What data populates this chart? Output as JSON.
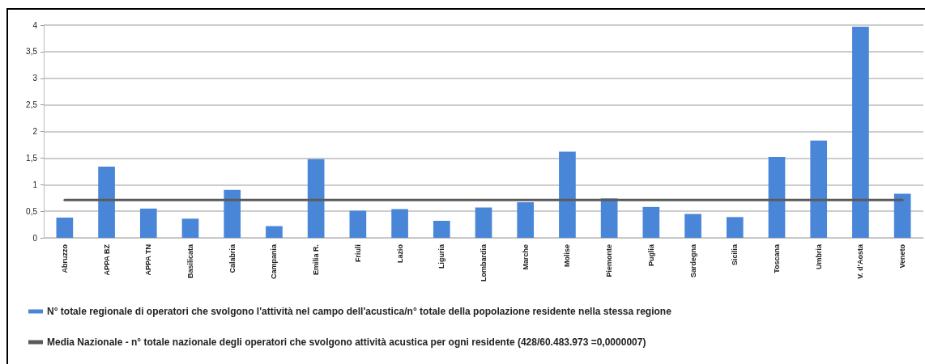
{
  "chart_data": {
    "type": "bar",
    "categories": [
      "Abruzzo",
      "APPA BZ",
      "APPA TN",
      "Basilicata",
      "Calabria",
      "Campania",
      "Emilia R.",
      "Friuli",
      "Lazio",
      "Liguria",
      "Lombardia",
      "Marche",
      "Molise",
      "Piemonte",
      "Puglia",
      "Sardegna",
      "Sicilia",
      "Toscana",
      "Umbria",
      "V. d'Aosta",
      "Veneto"
    ],
    "series": [
      {
        "name": "N° totale regionale di operatori che svolgono l'attività nel campo dell'acustica/n° totale della popolazione residente nella stessa regione",
        "color": "#4a86d8",
        "values": [
          0.38,
          1.34,
          0.55,
          0.36,
          0.9,
          0.22,
          1.48,
          0.51,
          0.54,
          0.32,
          0.57,
          0.67,
          1.62,
          0.74,
          0.58,
          0.45,
          0.39,
          1.52,
          1.83,
          3.97,
          0.83
        ]
      },
      {
        "name": "Media Nazionale - n° totale nazionale degli operatori che svolgono attività acustica per ogni residente (428/60.483.973 =0,0000007)",
        "type": "line",
        "color": "#5a5a5a",
        "values": [
          0.71,
          0.71,
          0.71,
          0.71,
          0.71,
          0.71,
          0.71,
          0.71,
          0.71,
          0.71,
          0.71,
          0.71,
          0.71,
          0.71,
          0.71,
          0.71,
          0.71,
          0.71,
          0.71,
          0.71,
          0.71
        ]
      }
    ],
    "ylim": [
      0,
      4
    ],
    "yticks": [
      0,
      {
        "value": 0.5,
        "label": "0,5"
      },
      1,
      {
        "value": 1.5,
        "label": "1,5"
      },
      2,
      {
        "value": 2.5,
        "label": "2,5"
      },
      3,
      {
        "value": 3.5,
        "label": "3,5"
      },
      4
    ],
    "grid": "y",
    "legend": "bottom",
    "marker": "none",
    "line_style": "solid"
  }
}
